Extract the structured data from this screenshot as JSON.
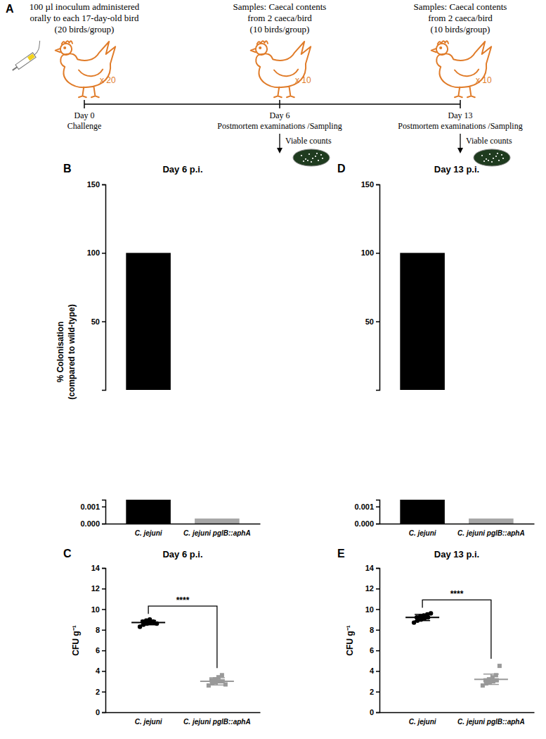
{
  "diagram": {
    "panel_label": "A",
    "steps": [
      {
        "caption": [
          "100 µl inoculum administered",
          "orally to each 17-day-old bird",
          "(20 birds/group)"
        ],
        "count": "x 20",
        "day": "Day 0",
        "event": "Challenge"
      },
      {
        "caption": [
          "Samples: Caecal contents",
          "from 2 caeca/bird",
          "(10 birds/group)"
        ],
        "count": "x 10",
        "day": "Day 6",
        "event": "Postmortem examinations /Sampling",
        "result": "Viable counts"
      },
      {
        "caption": [
          "Samples: Caecal contents",
          "from 2 caeca/bird",
          "(10 birds/group)"
        ],
        "count": "x 10",
        "day": "Day 13",
        "event": "Postmortem examinations /Sampling",
        "result": "Viable counts"
      }
    ]
  },
  "chart_data": [
    {
      "type": "bar",
      "panel_label": "B",
      "title": "Day 6 p.i.",
      "y_label": [
        "% Colonisation",
        "(compared to wild-type)"
      ],
      "categories": [
        "C. jejuni",
        "C. jejuni pglB::aphA"
      ],
      "values": [
        100,
        0.0003
      ],
      "colors": [
        "#000000",
        "#a6a6a6"
      ],
      "y_segments": [
        {
          "ylim": [
            0,
            0.0014
          ],
          "yticks": [
            {
              "value": 0,
              "label": "0.000"
            },
            {
              "value": 0.001,
              "label": "0.001"
            }
          ]
        },
        {
          "ylim": [
            0,
            150
          ],
          "yticks": [
            50,
            100,
            150
          ]
        }
      ]
    },
    {
      "type": "dot",
      "panel_label": "C",
      "title": "Day 6 p.i.",
      "y_label": "CFU g⁻¹",
      "series": [
        {
          "name": "C. jejuni",
          "color": "#000000",
          "marker": "circle",
          "values": [
            8.3,
            8.5,
            8.6,
            8.7,
            8.7,
            8.8,
            8.9,
            9.0,
            8.8,
            8.6
          ],
          "mean": 8.7,
          "sd": 0.22
        },
        {
          "name": "C. jejuni pglB::aphA",
          "color": "#999999",
          "marker": "square",
          "values": [
            2.6,
            2.8,
            2.9,
            3.0,
            3.0,
            3.1,
            3.2,
            3.4,
            3.6,
            2.7
          ],
          "mean": 3.0,
          "sd": 0.35
        }
      ],
      "ylim": [
        0,
        14
      ],
      "yticks": [
        0,
        2,
        4,
        6,
        8,
        10,
        12,
        14
      ],
      "annotation": "****"
    },
    {
      "type": "bar",
      "panel_label": "D",
      "title": "Day 13 p.i.",
      "categories": [
        "C. jejuni",
        "C. jejuni pglB::aphA"
      ],
      "values": [
        100,
        0.0003
      ],
      "colors": [
        "#000000",
        "#a6a6a6"
      ],
      "y_segments": [
        {
          "ylim": [
            0,
            0.0014
          ],
          "yticks": [
            {
              "value": 0,
              "label": "0.000"
            },
            {
              "value": 0.001,
              "label": "0.001"
            }
          ]
        },
        {
          "ylim": [
            0,
            150
          ],
          "yticks": [
            50,
            100,
            150
          ]
        }
      ]
    },
    {
      "type": "dot",
      "panel_label": "E",
      "title": "Day 13 p.i.",
      "y_label": "CFU g⁻¹",
      "series": [
        {
          "name": "C. jejuni",
          "color": "#000000",
          "marker": "circle",
          "values": [
            8.7,
            8.9,
            9.0,
            9.1,
            9.2,
            9.2,
            9.3,
            9.4,
            9.5,
            9.6
          ],
          "mean": 9.2,
          "sd": 0.3
        },
        {
          "name": "C. jejuni pglB::aphA",
          "color": "#999999",
          "marker": "square",
          "values": [
            2.6,
            2.8,
            2.9,
            3.0,
            3.1,
            3.1,
            3.2,
            3.4,
            3.6,
            4.5
          ],
          "mean": 3.2,
          "sd": 0.5
        }
      ],
      "ylim": [
        0,
        14
      ],
      "yticks": [
        0,
        2,
        4,
        6,
        8,
        10,
        12,
        14
      ],
      "annotation": "****"
    }
  ]
}
